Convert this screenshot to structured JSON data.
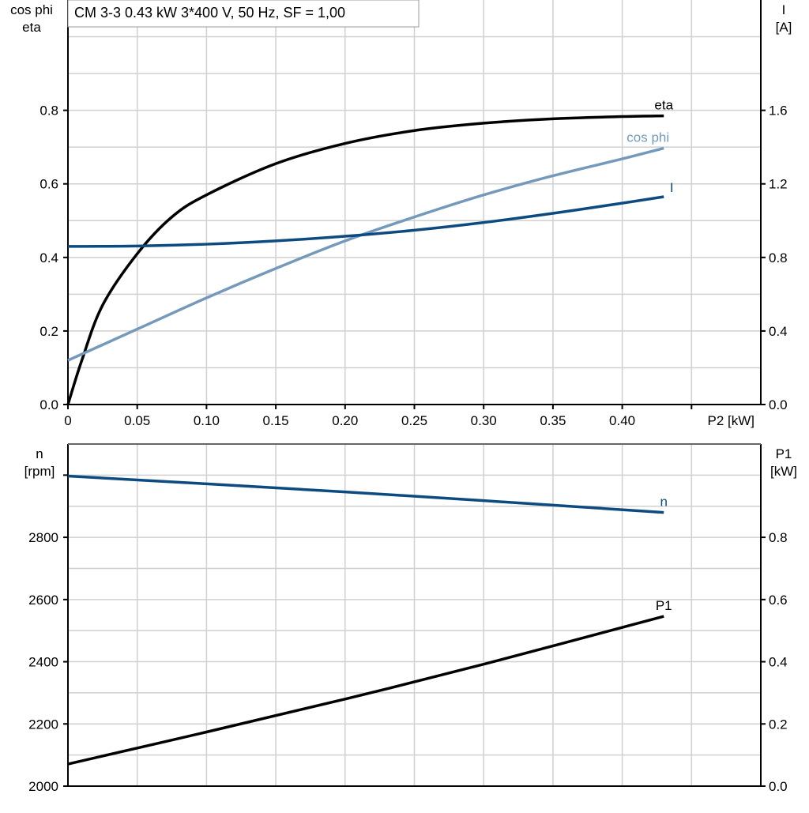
{
  "title": "CM 3-3   0.43 kW   3*400 V, 50 Hz, SF = 1,00",
  "chart_data": [
    {
      "type": "line",
      "xlabel": "P2 [kW]",
      "ylabel_left": [
        "cos phi",
        "eta"
      ],
      "ylabel_right": [
        "I",
        "[A]"
      ],
      "xlim": [
        0,
        0.5
      ],
      "ylim_left": [
        0,
        1.1
      ],
      "ylim_right": [
        0,
        2.2
      ],
      "x_ticks": [
        "0",
        "0.05",
        "0.10",
        "0.15",
        "0.20",
        "0.25",
        "0.30",
        "0.35",
        "0.40"
      ],
      "y_ticks_left": [
        "0.0",
        "0.2",
        "0.4",
        "0.6",
        "0.8"
      ],
      "y_ticks_right": [
        "0.0",
        "0.4",
        "0.8",
        "1.2",
        "1.6"
      ],
      "grid": true,
      "series": [
        {
          "name": "eta",
          "axis": "left",
          "color": "#000000",
          "x": [
            0,
            0.01,
            0.025,
            0.05,
            0.075,
            0.1,
            0.15,
            0.2,
            0.25,
            0.3,
            0.35,
            0.4,
            0.43
          ],
          "y": [
            0,
            0.12,
            0.27,
            0.41,
            0.51,
            0.57,
            0.655,
            0.71,
            0.745,
            0.765,
            0.777,
            0.783,
            0.785
          ]
        },
        {
          "name": "cos phi",
          "axis": "left",
          "color": "#7499bb",
          "x": [
            0,
            0.05,
            0.1,
            0.15,
            0.2,
            0.25,
            0.3,
            0.35,
            0.4,
            0.43
          ],
          "y": [
            0.12,
            0.205,
            0.29,
            0.37,
            0.445,
            0.51,
            0.57,
            0.622,
            0.668,
            0.697
          ]
        },
        {
          "name": "I",
          "axis": "right",
          "color": "#0d4a80",
          "x": [
            0,
            0.05,
            0.1,
            0.15,
            0.2,
            0.25,
            0.3,
            0.35,
            0.4,
            0.43
          ],
          "y": [
            0.86,
            0.862,
            0.872,
            0.89,
            0.915,
            0.948,
            0.99,
            1.04,
            1.095,
            1.13
          ]
        }
      ]
    },
    {
      "type": "line",
      "ylabel_left": [
        "n",
        "[rpm]"
      ],
      "ylabel_right": [
        "P1",
        "[kW]"
      ],
      "xlim": [
        0,
        0.5
      ],
      "ylim_left": [
        2000,
        3100
      ],
      "ylim_right": [
        0,
        1.1
      ],
      "y_ticks_left": [
        "2000",
        "2200",
        "2400",
        "2600",
        "2800"
      ],
      "y_ticks_right": [
        "0.0",
        "0.2",
        "0.4",
        "0.6",
        "0.8"
      ],
      "grid": true,
      "series": [
        {
          "name": "n",
          "axis": "left",
          "color": "#0d4a80",
          "x": [
            0,
            0.1,
            0.2,
            0.3,
            0.43
          ],
          "y": [
            2997,
            2972,
            2946,
            2918,
            2880
          ]
        },
        {
          "name": "P1",
          "axis": "right",
          "color": "#000000",
          "x": [
            0,
            0.1,
            0.2,
            0.3,
            0.43
          ],
          "y": [
            0.071,
            0.174,
            0.28,
            0.392,
            0.546
          ]
        }
      ]
    }
  ]
}
